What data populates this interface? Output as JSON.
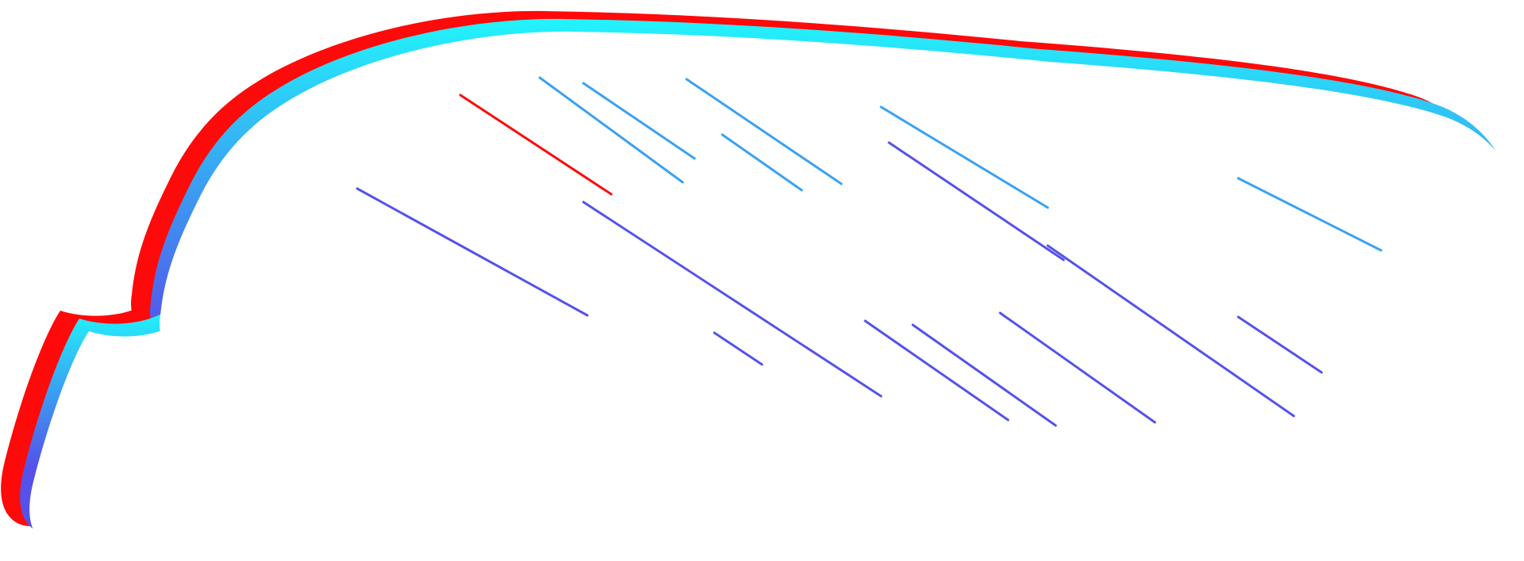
{
  "illustration": {
    "kind": "scribble-speech-bubble-icon",
    "layers": [
      {
        "name": "red-shadow-layer",
        "color": "#ff0a0a"
      },
      {
        "name": "blue-gradient-layer",
        "colors": [
          "#22f4fc",
          "#3aa2f2",
          "#5552ea"
        ]
      },
      {
        "name": "white-fill-layer",
        "color": "#ffffff"
      }
    ],
    "background": "#ffffff"
  }
}
